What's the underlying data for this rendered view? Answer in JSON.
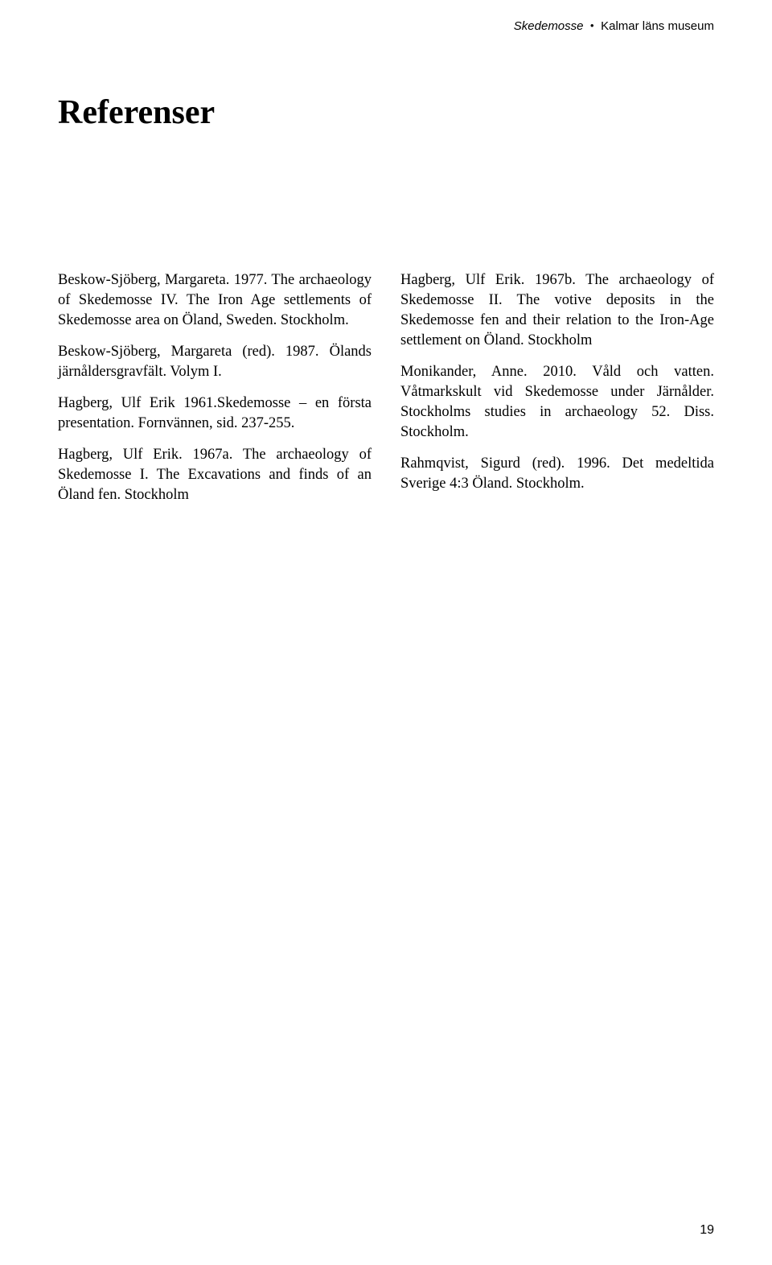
{
  "running_head": {
    "title": "Skedemosse",
    "separator": "•",
    "institution": "Kalmar läns museum"
  },
  "heading": "Referenser",
  "references": {
    "left": [
      "Beskow-Sjöberg, Margareta. 1977. The archaeology of Skedemosse IV. The Iron Age settlements of Skedemosse area on Öland, Sweden. Stockholm.",
      "Beskow-Sjöberg, Margareta (red). 1987. Ölands järnåldersgravfält. Volym I.",
      "Hagberg, Ulf Erik 1961.Skedemosse – en första presentation. Fornvännen, sid. 237-255.",
      "Hagberg, Ulf Erik. 1967a. The archaeology of Skedemosse I. The Excavations and finds of an Öland fen. Stockholm"
    ],
    "right": [
      "Hagberg, Ulf Erik. 1967b. The archaeology of Skedemosse II. The votive deposits in the Skedemosse fen and their relation to the Iron-Age settlement on Öland. Stockholm",
      "Monikander, Anne. 2010. Våld och vatten. Våtmarkskult vid Skedemosse under Järnålder. Stockholms studies in archaeology 52. Diss. Stockholm.",
      "Rahmqvist, Sigurd (red). 1996. Det medeltida Sverige 4:3 Öland. Stockholm."
    ]
  },
  "page_number": "19"
}
